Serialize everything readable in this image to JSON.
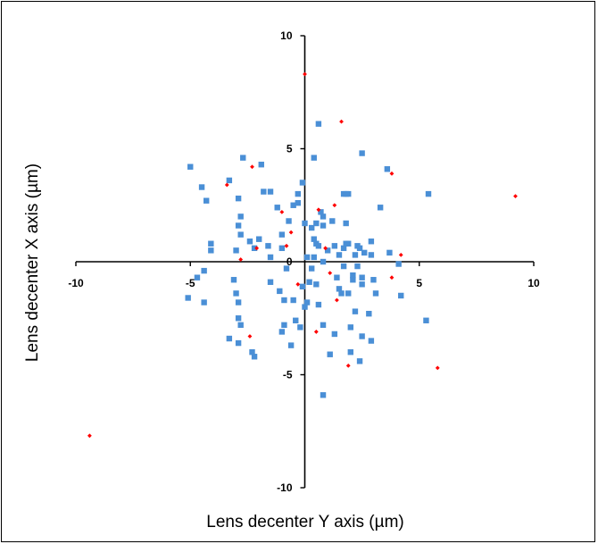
{
  "chart_data": {
    "type": "scatter",
    "title": "",
    "xlabel": "Lens decenter Y axis (µm)",
    "ylabel": "Lens decenter X axis (µm)",
    "xlim": [
      -10,
      10
    ],
    "ylim": [
      -10,
      10
    ],
    "x_ticks": [
      -10,
      -5,
      0,
      5,
      10
    ],
    "y_ticks": [
      -10,
      -5,
      0,
      5,
      10
    ],
    "x_tick_labels": [
      "-10",
      "-5",
      "0",
      "5",
      "10"
    ],
    "y_tick_labels": [
      "-10",
      "-5",
      "0",
      "5",
      "10"
    ],
    "grid": false,
    "legend": "none",
    "series": [
      {
        "marker": "square",
        "color": "#4a8fd6",
        "points": [
          [
            -5.0,
            4.2
          ],
          [
            -4.5,
            3.3
          ],
          [
            -4.3,
            2.7
          ],
          [
            -4.1,
            0.8
          ],
          [
            -4.1,
            0.5
          ],
          [
            -4.4,
            -0.4
          ],
          [
            -4.7,
            -0.7
          ],
          [
            -5.1,
            -1.6
          ],
          [
            -4.4,
            -1.8
          ],
          [
            -3.3,
            3.6
          ],
          [
            -2.7,
            4.6
          ],
          [
            -2.9,
            2.8
          ],
          [
            -2.8,
            2.0
          ],
          [
            -2.9,
            1.6
          ],
          [
            -2.8,
            1.2
          ],
          [
            -3.0,
            0.5
          ],
          [
            -3.1,
            -0.8
          ],
          [
            -3.0,
            -1.4
          ],
          [
            -2.9,
            -1.8
          ],
          [
            -2.9,
            -2.5
          ],
          [
            -2.8,
            -2.8
          ],
          [
            -3.3,
            -3.4
          ],
          [
            -2.9,
            -3.6
          ],
          [
            -2.3,
            -4.0
          ],
          [
            -2.2,
            -4.2
          ],
          [
            -1.9,
            4.3
          ],
          [
            -1.8,
            3.1
          ],
          [
            -1.5,
            3.1
          ],
          [
            -1.6,
            0.7
          ],
          [
            -1.5,
            0.2
          ],
          [
            -1.5,
            -0.9
          ],
          [
            -2.4,
            0.9
          ],
          [
            -2.0,
            1.0
          ],
          [
            -2.2,
            0.6
          ],
          [
            -1.0,
            0.6
          ],
          [
            -0.8,
            -0.3
          ],
          [
            -1.1,
            -1.3
          ],
          [
            -0.9,
            -1.7
          ],
          [
            -1.0,
            -3.1
          ],
          [
            -0.9,
            -2.8
          ],
          [
            -0.6,
            -3.7
          ],
          [
            -1.2,
            2.4
          ],
          [
            -1.0,
            1.2
          ],
          [
            -0.7,
            1.8
          ],
          [
            -0.5,
            2.5
          ],
          [
            -0.3,
            2.6
          ],
          [
            -0.3,
            3.0
          ],
          [
            -0.1,
            3.5
          ],
          [
            0.0,
            1.7
          ],
          [
            -0.5,
            -1.7
          ],
          [
            -0.4,
            -2.6
          ],
          [
            -0.2,
            -2.9
          ],
          [
            -0.1,
            -1.1
          ],
          [
            0.0,
            -2.0
          ],
          [
            0.1,
            -1.8
          ],
          [
            0.2,
            -0.9
          ],
          [
            0.1,
            0.2
          ],
          [
            0.4,
            4.6
          ],
          [
            0.6,
            6.1
          ],
          [
            0.3,
            1.5
          ],
          [
            0.4,
            1.0
          ],
          [
            0.5,
            0.8
          ],
          [
            0.6,
            0.7
          ],
          [
            0.4,
            0.2
          ],
          [
            0.3,
            -0.3
          ],
          [
            0.5,
            -1.0
          ],
          [
            0.6,
            -1.9
          ],
          [
            0.8,
            0.0
          ],
          [
            0.8,
            2.0
          ],
          [
            0.7,
            2.2
          ],
          [
            0.5,
            1.7
          ],
          [
            1.0,
            0.5
          ],
          [
            0.8,
            -2.8
          ],
          [
            1.1,
            -4.1
          ],
          [
            1.3,
            -3.2
          ],
          [
            0.8,
            -5.9
          ],
          [
            1.2,
            1.8
          ],
          [
            1.3,
            0.7
          ],
          [
            1.5,
            0.3
          ],
          [
            1.4,
            -0.7
          ],
          [
            1.5,
            -1.2
          ],
          [
            1.6,
            -1.4
          ],
          [
            1.7,
            -0.2
          ],
          [
            1.7,
            3.0
          ],
          [
            1.8,
            3.0
          ],
          [
            1.9,
            3.0
          ],
          [
            1.7,
            0.6
          ],
          [
            1.8,
            1.7
          ],
          [
            1.8,
            0.8
          ],
          [
            1.9,
            0.8
          ],
          [
            1.9,
            -1.4
          ],
          [
            2.0,
            -2.9
          ],
          [
            2.0,
            -4.0
          ],
          [
            2.1,
            -0.6
          ],
          [
            2.1,
            -0.8
          ],
          [
            2.2,
            0.3
          ],
          [
            2.3,
            -0.2
          ],
          [
            2.2,
            -2.2
          ],
          [
            2.4,
            -4.4
          ],
          [
            2.5,
            -3.3
          ],
          [
            2.5,
            -0.7
          ],
          [
            2.5,
            -1.0
          ],
          [
            2.6,
            0.4
          ],
          [
            2.4,
            0.6
          ],
          [
            2.3,
            0.7
          ],
          [
            2.5,
            4.8
          ],
          [
            2.8,
            -2.3
          ],
          [
            2.9,
            0.9
          ],
          [
            2.9,
            0.3
          ],
          [
            3.0,
            -0.8
          ],
          [
            3.1,
            -1.4
          ],
          [
            2.9,
            -3.5
          ],
          [
            3.3,
            2.4
          ],
          [
            3.6,
            4.1
          ],
          [
            3.7,
            0.4
          ],
          [
            4.1,
            -0.1
          ],
          [
            4.2,
            -1.5
          ],
          [
            5.4,
            3.0
          ],
          [
            5.3,
            -2.6
          ],
          [
            0.8,
            1.6
          ]
        ]
      },
      {
        "marker": "diamond",
        "color": "#ff0000",
        "points": [
          [
            0.0,
            8.3
          ],
          [
            1.6,
            6.2
          ],
          [
            -2.3,
            4.2
          ],
          [
            3.8,
            3.9
          ],
          [
            -3.4,
            3.4
          ],
          [
            9.2,
            2.9
          ],
          [
            1.3,
            2.5
          ],
          [
            0.6,
            2.3
          ],
          [
            -1.0,
            2.2
          ],
          [
            -0.6,
            1.3
          ],
          [
            -2.1,
            0.6
          ],
          [
            -0.8,
            0.7
          ],
          [
            0.9,
            0.6
          ],
          [
            -2.8,
            0.1
          ],
          [
            4.2,
            0.3
          ],
          [
            1.1,
            -0.5
          ],
          [
            3.8,
            -0.7
          ],
          [
            -0.3,
            -1.0
          ],
          [
            1.4,
            -1.7
          ],
          [
            0.5,
            -3.1
          ],
          [
            -2.4,
            -3.3
          ],
          [
            1.9,
            -4.6
          ],
          [
            5.8,
            -4.7
          ],
          [
            -9.4,
            -7.7
          ]
        ]
      }
    ]
  }
}
